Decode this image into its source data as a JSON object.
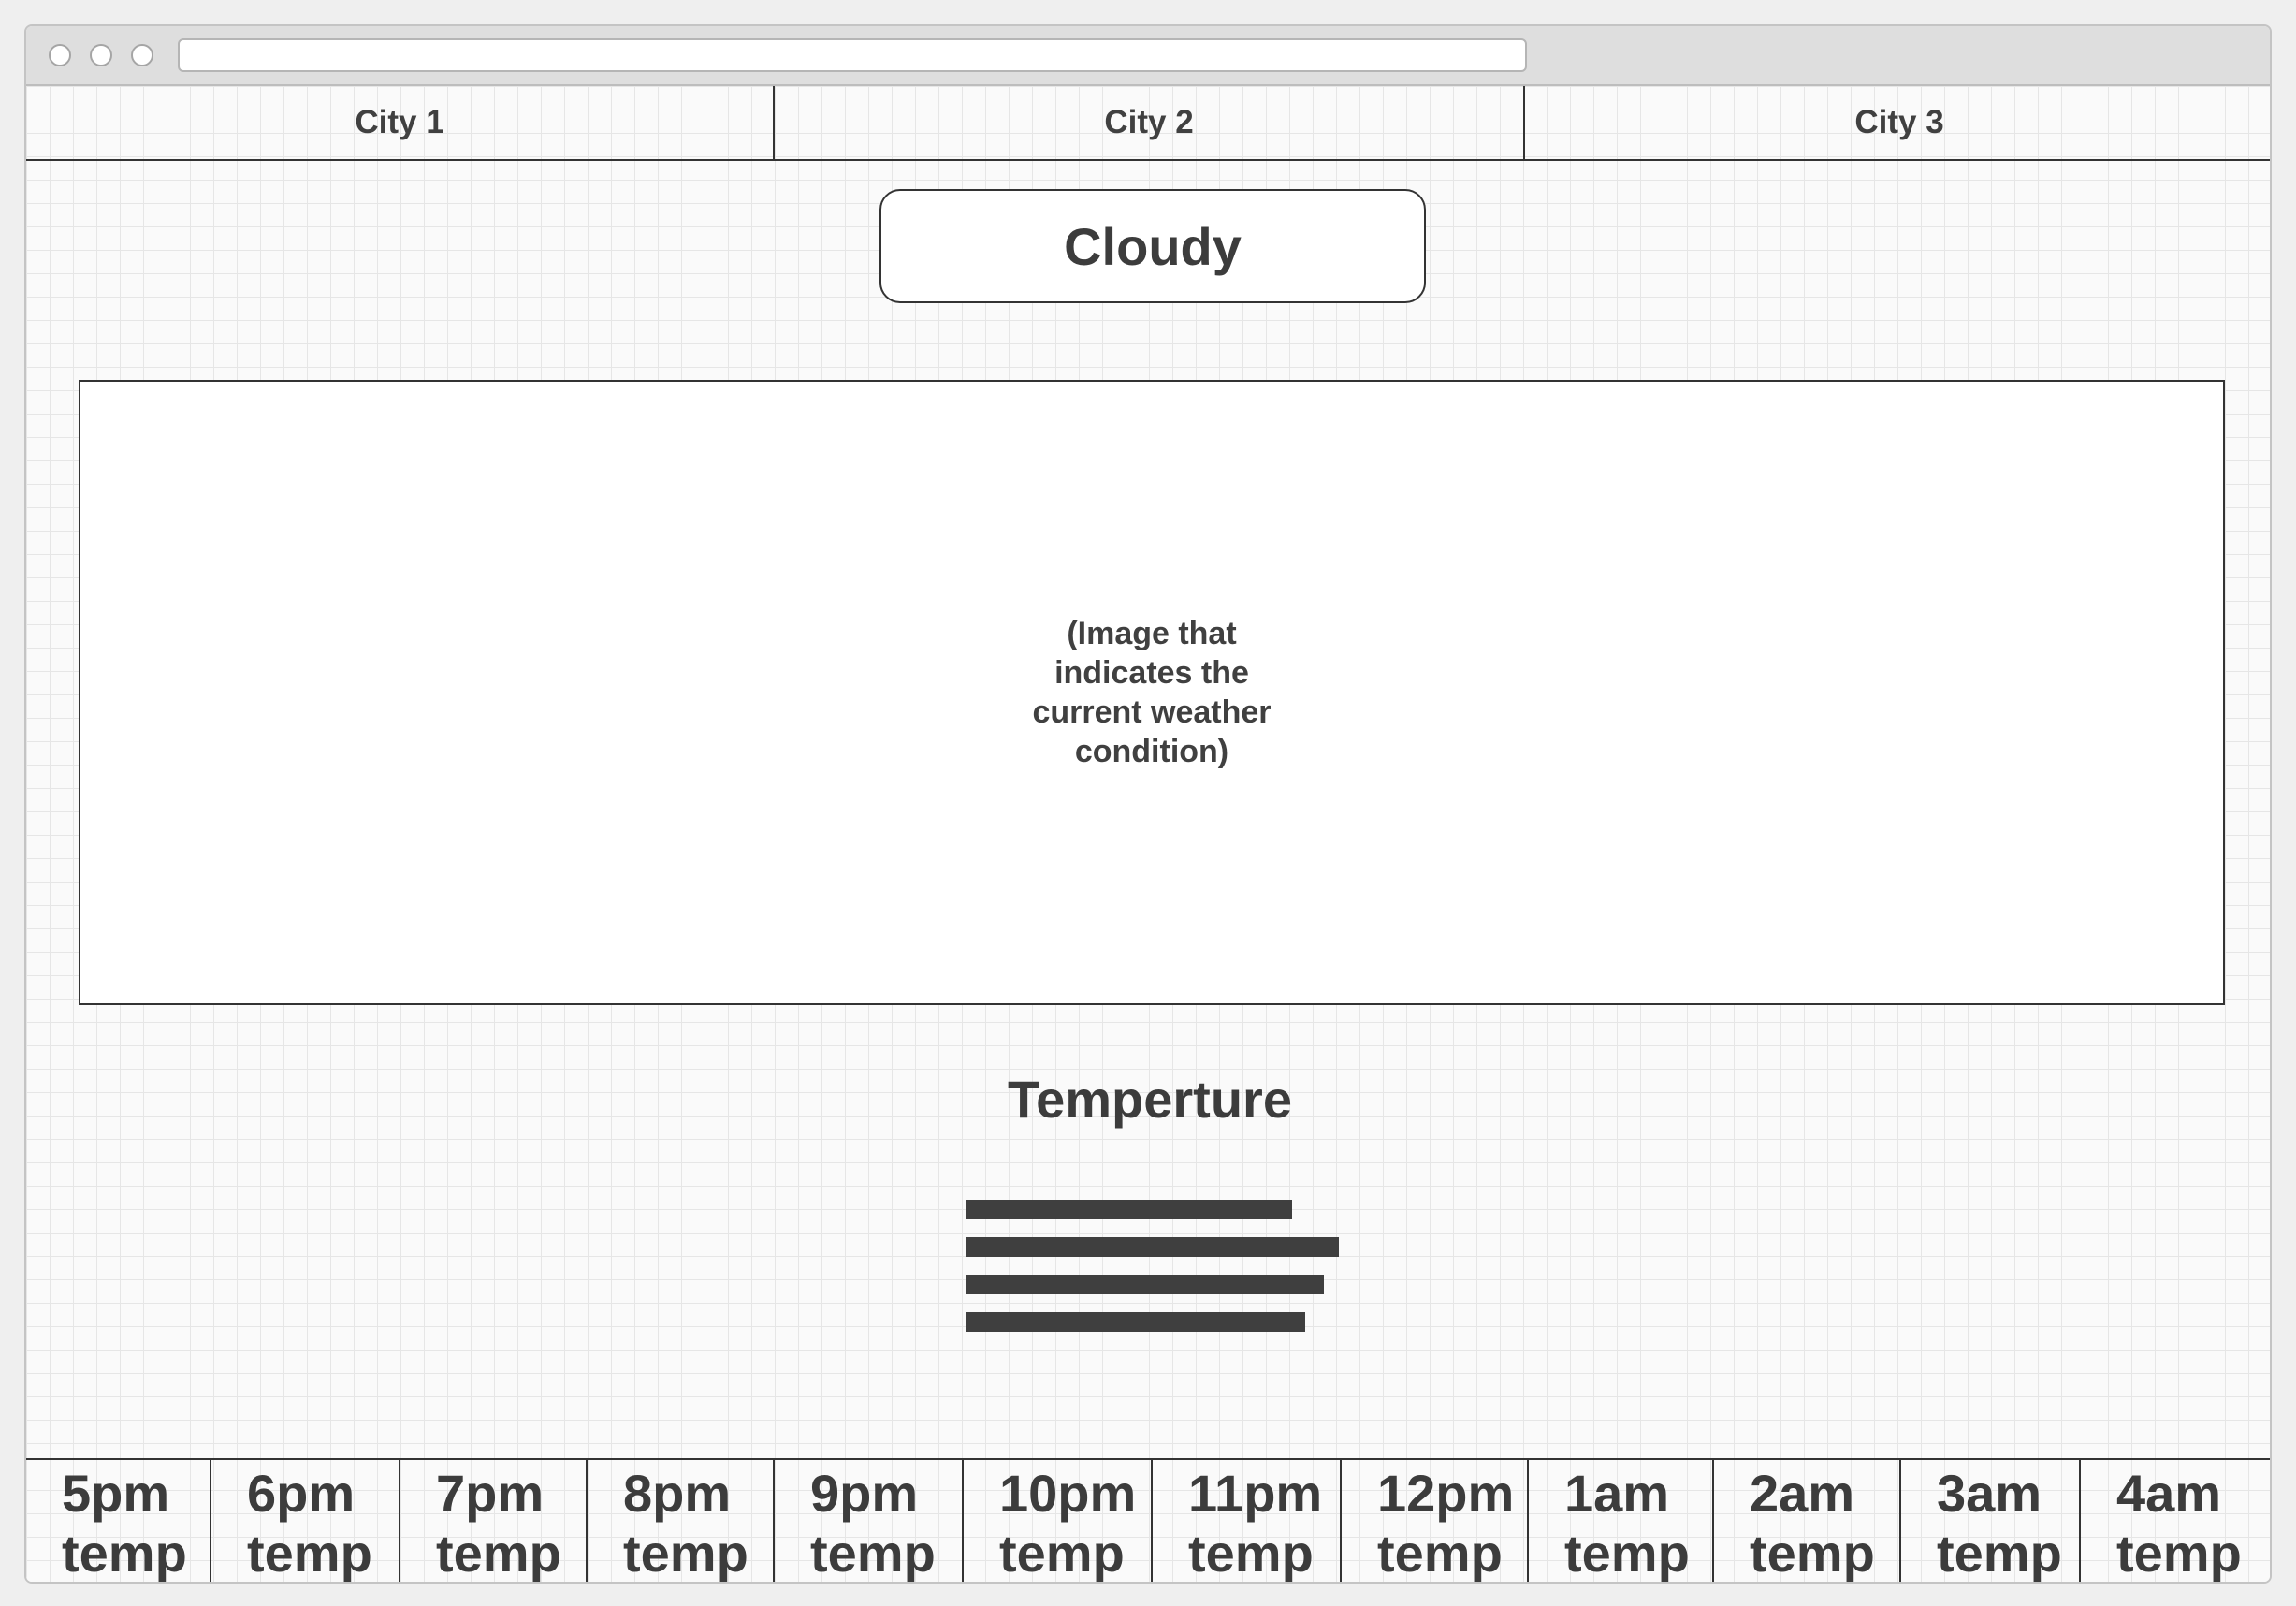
{
  "tabs": [
    {
      "label": "City 1"
    },
    {
      "label": "City 2"
    },
    {
      "label": "City 3"
    }
  ],
  "condition": {
    "label": "Cloudy"
  },
  "image_placeholder": {
    "caption": "(Image that indicates the current weather condition)"
  },
  "temperature": {
    "title": "Temperture"
  },
  "hourly": [
    {
      "time": "5pm",
      "value": "temp"
    },
    {
      "time": "6pm",
      "value": "temp"
    },
    {
      "time": "7pm",
      "value": "temp"
    },
    {
      "time": "8pm",
      "value": "temp"
    },
    {
      "time": "9pm",
      "value": "temp"
    },
    {
      "time": "10pm",
      "value": "temp"
    },
    {
      "time": "11pm",
      "value": "temp"
    },
    {
      "time": "12pm",
      "value": "temp"
    },
    {
      "time": "1am",
      "value": "temp"
    },
    {
      "time": "2am",
      "value": "temp"
    },
    {
      "time": "3am",
      "value": "temp"
    },
    {
      "time": "4am",
      "value": "temp"
    }
  ]
}
